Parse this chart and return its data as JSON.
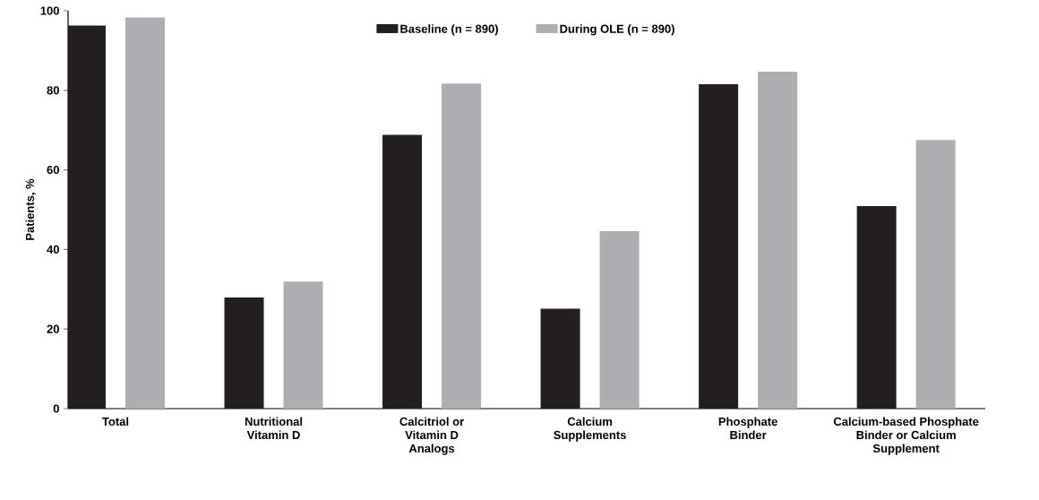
{
  "chart_data": {
    "type": "bar",
    "ylabel": "Patients, %",
    "categories": [
      "Total",
      "Nutritional Vitamin D",
      "Calcitriol or Vitamin D Analogs",
      "Calcium Supplements",
      "Phosphate Binder",
      "Calcium-based Phosphate Binder or Calcium Supplement"
    ],
    "series": [
      {
        "name": "Baseline (n = 890)",
        "color": "#231f20",
        "values": [
          96.3,
          27.9,
          68.8,
          25.1,
          81.5,
          50.9
        ]
      },
      {
        "name": "During OLE (n = 890)",
        "color": "#adaeb1",
        "values": [
          98.3,
          31.9,
          81.7,
          44.6,
          84.7,
          67.5
        ]
      }
    ],
    "ylim": [
      0,
      100
    ],
    "yticks": [
      0,
      20,
      40,
      60,
      80,
      100
    ],
    "grid": false,
    "legend": "top"
  }
}
